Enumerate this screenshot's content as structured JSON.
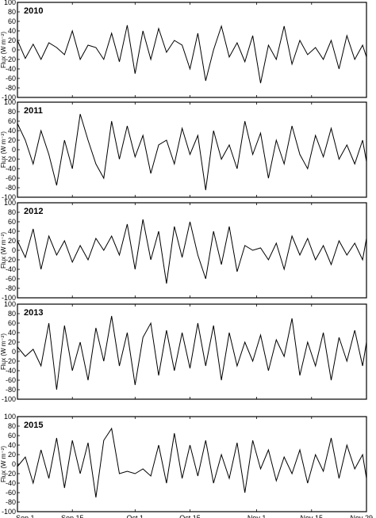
{
  "chart_data": {
    "type": "line",
    "ylabel": "Flux (W m⁻²)",
    "ylim": [
      -100,
      100
    ],
    "yticks": [
      -100,
      -80,
      -60,
      -40,
      -20,
      0,
      20,
      40,
      60,
      80,
      100
    ],
    "xlim_days": [
      0,
      89
    ],
    "xticks": [
      {
        "label": "Sep 1",
        "day": 0
      },
      {
        "label": "Sep 15",
        "day": 14
      },
      {
        "label": "Oct 1",
        "day": 30
      },
      {
        "label": "Oct 15",
        "day": 44
      },
      {
        "label": "Nov 1",
        "day": 61
      },
      {
        "label": "Nov 15",
        "day": 75
      },
      {
        "label": "Nov 29",
        "day": 89
      }
    ],
    "panels": [
      {
        "year": "2010",
        "x": [
          0,
          2,
          4,
          6,
          8,
          10,
          12,
          14,
          16,
          18,
          20,
          22,
          24,
          26,
          28,
          30,
          32,
          34,
          36,
          38,
          40,
          42,
          44,
          46,
          48,
          50,
          52,
          54,
          56,
          58,
          60,
          62,
          64,
          66,
          68,
          70,
          72,
          74,
          76,
          78,
          80,
          82,
          84,
          86,
          88,
          89
        ],
        "values": [
          20,
          -18,
          12,
          -20,
          15,
          5,
          -10,
          40,
          -20,
          10,
          5,
          -20,
          35,
          -25,
          52,
          -50,
          40,
          -20,
          45,
          -5,
          20,
          10,
          -40,
          35,
          -65,
          0,
          50,
          -15,
          15,
          -25,
          30,
          -70,
          10,
          -20,
          50,
          -30,
          20,
          -10,
          5,
          -20,
          20,
          -40,
          30,
          -20,
          10,
          -15
        ]
      },
      {
        "year": "2011",
        "x": [
          0,
          2,
          4,
          6,
          8,
          10,
          12,
          14,
          16,
          18,
          20,
          22,
          24,
          26,
          28,
          30,
          32,
          34,
          36,
          38,
          40,
          42,
          44,
          46,
          48,
          50,
          52,
          54,
          56,
          58,
          60,
          62,
          64,
          66,
          68,
          70,
          72,
          74,
          76,
          78,
          80,
          82,
          84,
          86,
          88,
          89
        ],
        "values": [
          55,
          20,
          -30,
          40,
          -10,
          -75,
          20,
          -40,
          75,
          20,
          -30,
          -60,
          60,
          -20,
          50,
          -15,
          30,
          -50,
          10,
          20,
          -30,
          45,
          -10,
          30,
          -85,
          40,
          -20,
          10,
          -40,
          60,
          -10,
          35,
          -60,
          20,
          -30,
          50,
          -10,
          -40,
          30,
          -15,
          45,
          -20,
          10,
          -30,
          20,
          -25
        ]
      },
      {
        "year": "2012",
        "x": [
          0,
          2,
          4,
          6,
          8,
          10,
          12,
          14,
          16,
          18,
          20,
          22,
          24,
          26,
          28,
          30,
          32,
          34,
          36,
          38,
          40,
          42,
          44,
          46,
          48,
          50,
          52,
          54,
          56,
          58,
          60,
          62,
          64,
          66,
          68,
          70,
          72,
          74,
          76,
          78,
          80,
          82,
          84,
          86,
          88,
          89
        ],
        "values": [
          20,
          -15,
          45,
          -40,
          30,
          -10,
          20,
          -25,
          10,
          -20,
          25,
          0,
          30,
          -10,
          55,
          -40,
          65,
          -20,
          40,
          -70,
          50,
          -15,
          60,
          -10,
          -60,
          40,
          -30,
          50,
          -45,
          10,
          0,
          5,
          -20,
          15,
          -40,
          30,
          -10,
          25,
          -20,
          10,
          -30,
          20,
          -10,
          15,
          -20,
          25
        ]
      },
      {
        "year": "2013",
        "x": [
          0,
          2,
          4,
          6,
          8,
          10,
          12,
          14,
          16,
          18,
          20,
          22,
          24,
          26,
          28,
          30,
          32,
          34,
          36,
          38,
          40,
          42,
          44,
          46,
          48,
          50,
          52,
          54,
          56,
          58,
          60,
          62,
          64,
          66,
          68,
          70,
          72,
          74,
          76,
          78,
          80,
          82,
          84,
          86,
          88,
          89
        ],
        "values": [
          10,
          -10,
          5,
          -30,
          60,
          -80,
          55,
          -40,
          20,
          -60,
          50,
          -20,
          75,
          -30,
          40,
          -70,
          30,
          60,
          -50,
          45,
          -40,
          40,
          -35,
          60,
          -30,
          55,
          -60,
          40,
          -30,
          20,
          -20,
          35,
          -40,
          25,
          -10,
          70,
          -50,
          20,
          -30,
          40,
          -60,
          30,
          -20,
          45,
          -30,
          20
        ]
      },
      {
        "year": "2015",
        "x": [
          0,
          2,
          4,
          6,
          8,
          10,
          12,
          14,
          16,
          18,
          20,
          22,
          24,
          26,
          28,
          30,
          32,
          34,
          36,
          38,
          40,
          42,
          44,
          46,
          48,
          50,
          52,
          54,
          56,
          58,
          60,
          62,
          64,
          66,
          68,
          70,
          72,
          74,
          76,
          78,
          80,
          82,
          84,
          86,
          88,
          89
        ],
        "values": [
          -5,
          15,
          -40,
          30,
          -30,
          55,
          -50,
          50,
          -20,
          45,
          -70,
          50,
          75,
          -20,
          -15,
          -20,
          -10,
          -25,
          40,
          -40,
          65,
          -30,
          40,
          -25,
          50,
          -40,
          20,
          -30,
          45,
          -60,
          50,
          -10,
          30,
          -35,
          15,
          -20,
          30,
          -40,
          20,
          -15,
          55,
          -30,
          40,
          -10,
          20,
          -30
        ]
      }
    ]
  }
}
